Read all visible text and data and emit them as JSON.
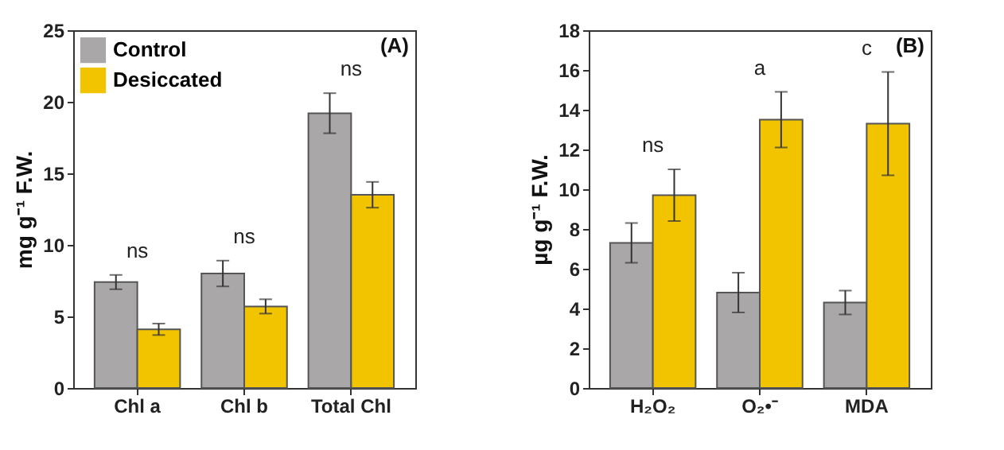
{
  "chart_data": [
    {
      "type": "bar",
      "categories": [
        "Chl a",
        "Chl b",
        "Total Chl"
      ],
      "ylabel": "mg g⁻¹ F.W.",
      "ylim": [
        0,
        25
      ],
      "yticks": [
        0,
        5,
        10,
        15,
        20,
        25
      ],
      "grid": false,
      "legend": "top left",
      "series": [
        {
          "name": "Control",
          "color": "#a9a7a8",
          "values": [
            7.4,
            8.0,
            19.2
          ],
          "errors": [
            0.5,
            0.9,
            1.4
          ]
        },
        {
          "name": "Desiccated",
          "color": "#f2c400",
          "values": [
            4.1,
            5.7,
            13.5
          ],
          "errors": [
            0.4,
            0.5,
            0.9
          ]
        }
      ],
      "annotations": [
        "(A)",
        "ns",
        "ns",
        "ns"
      ]
    },
    {
      "type": "bar",
      "categories": [
        "H₂O₂",
        "O₂•⁻",
        "MDA"
      ],
      "ylabel": "µg g⁻¹ F.W.",
      "ylim": [
        0,
        18
      ],
      "yticks": [
        0,
        2,
        4,
        6,
        8,
        10,
        12,
        14,
        16,
        18
      ],
      "grid": false,
      "legend": false,
      "series": [
        {
          "color": "#a9a7a8",
          "values": [
            7.3,
            4.8,
            4.3
          ],
          "errors": [
            1.0,
            1.0,
            0.6
          ]
        },
        {
          "color": "#f2c400",
          "values": [
            9.7,
            13.5,
            13.3
          ],
          "errors": [
            1.3,
            1.4,
            2.6
          ]
        }
      ],
      "annotations": [
        "(B)",
        "ns",
        "a",
        "c"
      ]
    }
  ]
}
